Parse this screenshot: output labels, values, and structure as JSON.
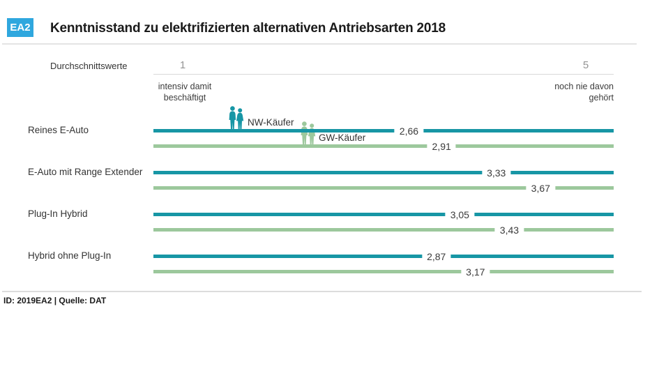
{
  "badge": {
    "label": "EA2"
  },
  "title": "Kenntnisstand zu elektrifizierten alternativen Antriebsarten 2018",
  "axis": {
    "caption": "Durchschnittswerte",
    "min_tick": "1",
    "max_tick": "5",
    "min_description": "intensiv damit beschäftigt",
    "max_description": "noch nie davon gehört"
  },
  "legend": {
    "nw_label": "NW-Käufer",
    "gw_label": "GW-Käufer"
  },
  "footer": "ID: 2019EA2 | Quelle: DAT",
  "colors": {
    "badge_blue": "#2fa7de",
    "nw_teal": "#1796a5",
    "gw_green": "#9cc89c"
  },
  "chart_data": {
    "type": "bar",
    "orientation": "horizontal",
    "title": "Kenntnisstand zu elektrifizierten alternativen Antriebsarten 2018",
    "xlabel": "Durchschnittswerte",
    "xlim": [
      1,
      5
    ],
    "scale_min_meaning": "intensiv damit beschäftigt",
    "scale_max_meaning": "noch nie davon gehört",
    "decimal_style": "comma",
    "categories": [
      "Reines E-Auto",
      "E-Auto mit Range Extender",
      "Plug-In Hybrid",
      "Hybrid ohne Plug-In"
    ],
    "series": [
      {
        "name": "NW-Käufer",
        "color": "#1796a5",
        "values": [
          2.66,
          3.33,
          3.05,
          2.87
        ]
      },
      {
        "name": "GW-Käufer",
        "color": "#9cc89c",
        "values": [
          2.91,
          3.67,
          3.43,
          3.17
        ]
      }
    ],
    "legend_position": "inline-first-row",
    "grid": false,
    "source": "Quelle: DAT",
    "figure_id": "2019EA2"
  }
}
